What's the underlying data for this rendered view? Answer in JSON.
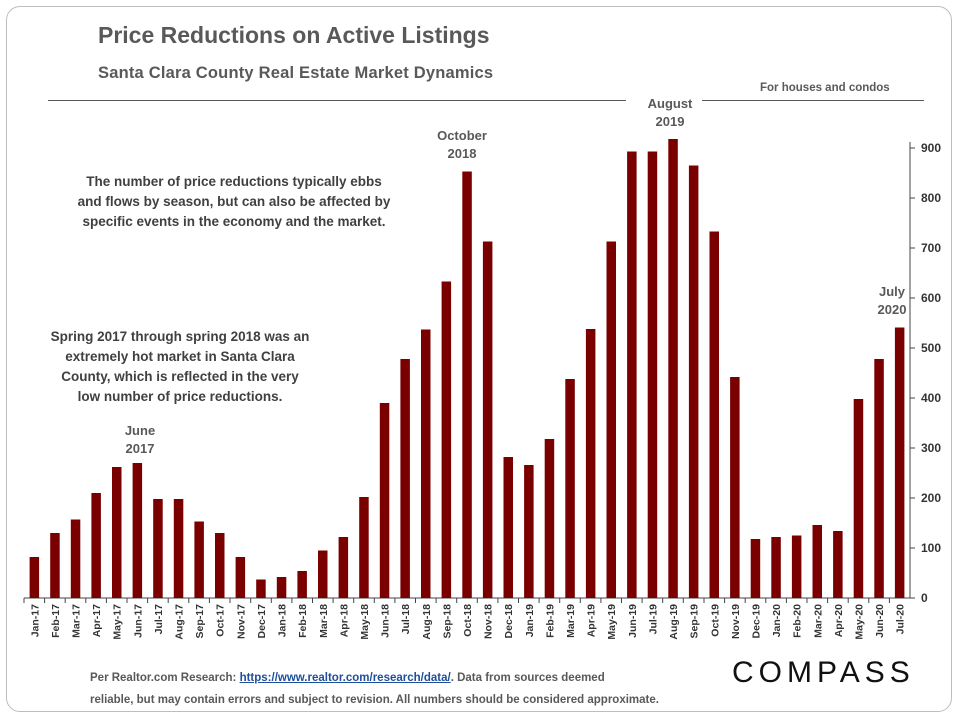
{
  "title": "Price Reductions on Active Listings",
  "subtitle": "Santa Clara County Real Estate Market Dynamics",
  "note_top": "For houses and condos",
  "annotations": {
    "june2017": [
      "June",
      "2017"
    ],
    "oct2018": [
      "October",
      "2018"
    ],
    "aug2019": [
      "August",
      "2019"
    ],
    "jul2020": [
      "July",
      "2020"
    ]
  },
  "text_boxes": {
    "seasonal": [
      "The number of price reductions typically ebbs",
      "and flows by season, but can also be affected by",
      "specific events in the economy and the market."
    ],
    "hot_market": [
      "Spring 2017 through spring 2018 was an",
      "extremely hot market in Santa Clara",
      "County, which is reflected in the very",
      "low number of price reductions."
    ]
  },
  "source": {
    "prefix": "Per Realtor.com Research: ",
    "link": "https://www.realtor.com/research/data/",
    "suffix": ". Data from sources deemed",
    "line2": "reliable, but may contain errors and subject to revision. All numbers should be considered approximate."
  },
  "logo": "COMPASS",
  "colors": {
    "bar": "#7a0000",
    "text": "#595959"
  },
  "chart_data": {
    "type": "bar",
    "categories": [
      "Jan-17",
      "Feb-17",
      "Mar-17",
      "Apr-17",
      "May-17",
      "Jun-17",
      "Jul-17",
      "Aug-17",
      "Sep-17",
      "Oct-17",
      "Nov-17",
      "Dec-17",
      "Jan-18",
      "Feb-18",
      "Mar-18",
      "Apr-18",
      "May-18",
      "Jun-18",
      "Jul-18",
      "Aug-18",
      "Sep-18",
      "Oct-18",
      "Nov-18",
      "Dec-18",
      "Jan-19",
      "Feb-19",
      "Mar-19",
      "Apr-19",
      "May-19",
      "Jun-19",
      "Jul-19",
      "Aug-19",
      "Sep-19",
      "Oct-19",
      "Nov-19",
      "Dec-19",
      "Jan-20",
      "Feb-20",
      "Mar-20",
      "Apr-20",
      "May-20",
      "Jun-20",
      "Jul-20"
    ],
    "values": [
      82,
      130,
      157,
      210,
      262,
      270,
      198,
      198,
      153,
      130,
      82,
      37,
      42,
      54,
      95,
      122,
      202,
      390,
      478,
      537,
      633,
      853,
      713,
      282,
      266,
      318,
      438,
      538,
      713,
      893,
      893,
      918,
      865,
      733,
      442,
      118,
      122,
      125,
      146,
      134,
      398,
      478,
      541
    ],
    "y_ticks": [
      0,
      100,
      200,
      300,
      400,
      500,
      600,
      700,
      800,
      900
    ],
    "ylim": [
      0,
      950
    ],
    "y_axis_side": "right",
    "grid": false
  }
}
